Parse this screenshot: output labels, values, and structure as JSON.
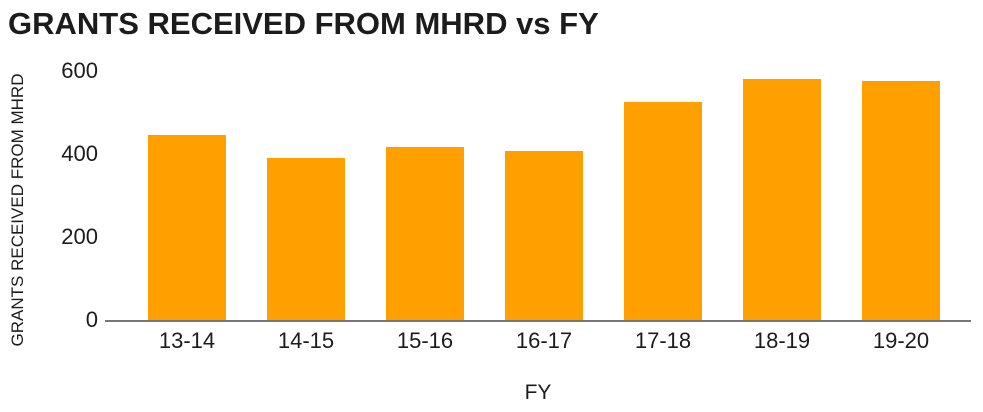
{
  "chart_data": {
    "type": "bar",
    "title": "GRANTS RECEIVED FROM MHRD vs FY",
    "xlabel": "FY",
    "ylabel": "GRANTS RECEIVED FROM MHRD",
    "categories": [
      "13-14",
      "14-15",
      "15-16",
      "16-17",
      "17-18",
      "18-19",
      "19-20"
    ],
    "values": [
      445,
      390,
      418,
      407,
      525,
      580,
      576
    ],
    "ylim": [
      0,
      600
    ],
    "yticks": [
      0,
      200,
      400,
      600
    ],
    "grid": false,
    "legend": false,
    "bar_color": "#FFA000",
    "axis_line_color": "#777777",
    "text_color": "#1c1c1c"
  }
}
